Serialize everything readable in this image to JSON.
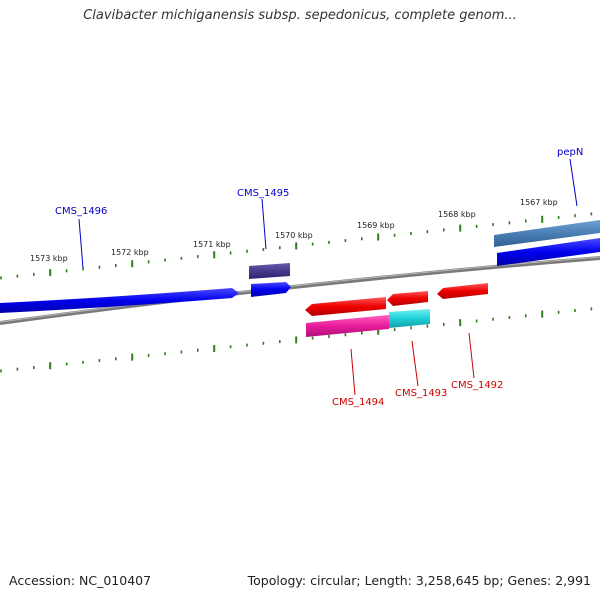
{
  "title": "Clavibacter michiganensis subsp. sepedonicus, complete genom...",
  "accession": "Accession: NC_010407",
  "topology": "Topology: circular; Length: 3,258,645 bp; Genes: 2,991",
  "kbp_labels": [
    "1573 kbp",
    "1572 kbp",
    "1571 kbp",
    "1570 kbp",
    "1569 kbp",
    "1568 kbp",
    "1567 kbp"
  ],
  "gene_labels": {
    "cms1496": "CMS_1496",
    "cms1495": "CMS_1495",
    "pepn": "pepN",
    "cms1494": "CMS_1494",
    "cms1493": "CMS_1493",
    "cms1492": "CMS_1492"
  },
  "colors": {
    "forward_label": "#0000cc",
    "reverse_label": "#cc0000",
    "tick": "#2e7d1e",
    "backbone": "#808080"
  }
}
